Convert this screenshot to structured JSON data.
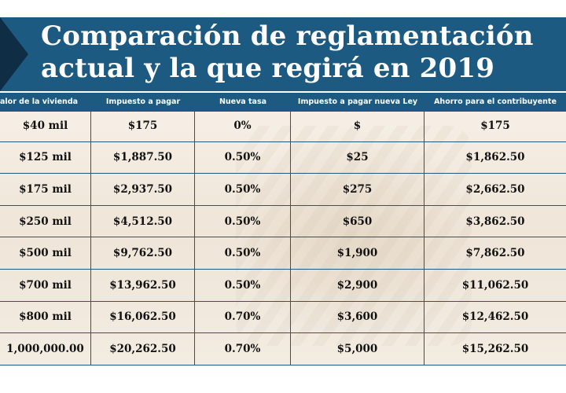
{
  "title": {
    "line1": "Comparación de reglamentación",
    "line2": "actual y la que regirá en 2019"
  },
  "table": {
    "headers": [
      "alor de la vivienda",
      "Impuesto a pagar",
      "Nueva tasa",
      "Impuesto a pagar nueva Ley",
      "Ahorro para el contribuyente"
    ],
    "rows": [
      [
        "$40 mil",
        "$175",
        "0%",
        "$",
        "$175"
      ],
      [
        "$125 mil",
        "$1,887.50",
        "0.50%",
        "$25",
        "$1,862.50"
      ],
      [
        "$175 mil",
        "$2,937.50",
        "0.50%",
        "$275",
        "$2,662.50"
      ],
      [
        "$250 mil",
        "$4,512.50",
        "0.50%",
        "$650",
        "$3,862.50"
      ],
      [
        "$500 mil",
        "$9,762.50",
        "0.50%",
        "$1,900",
        "$7,862.50"
      ],
      [
        "$700 mil",
        "$13,962.50",
        "0.50%",
        "$2,900",
        "$11,062.50"
      ],
      [
        "$800 mil",
        "$16,062.50",
        "0.70%",
        "$3,600",
        "$12,462.50"
      ],
      [
        "1,000,000.00",
        "$20,262.50",
        "0.70%",
        "$5,000",
        "$15,262.50"
      ]
    ]
  },
  "colors": {
    "band": "#1d5a82",
    "arrow": "#0f2d44",
    "background": "#f3ece2"
  }
}
